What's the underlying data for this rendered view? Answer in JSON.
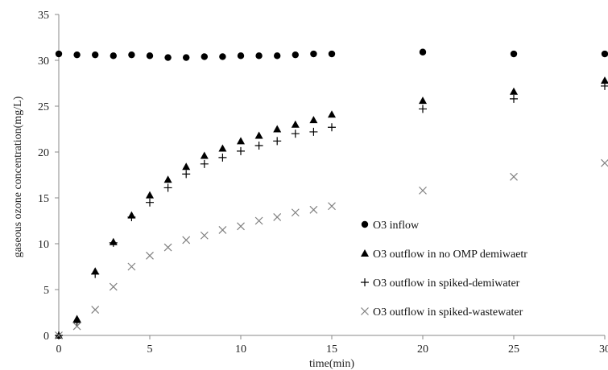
{
  "chart_data": {
    "type": "scatter",
    "title": "",
    "xlabel": "time(min)",
    "ylabel": "gaseous ozone concentration(mg/L)",
    "xlim": [
      0,
      30
    ],
    "ylim": [
      0,
      35
    ],
    "xticks": [
      0,
      5,
      10,
      15,
      20,
      25,
      30
    ],
    "yticks": [
      0,
      5,
      10,
      15,
      20,
      25,
      30,
      35
    ],
    "grid": false,
    "legend": "center-right",
    "series": [
      {
        "name": "O3 inflow",
        "marker": "circle",
        "color": "#000000",
        "x": [
          0,
          1,
          2,
          3,
          4,
          5,
          6,
          7,
          8,
          9,
          10,
          11,
          12,
          13,
          14,
          15,
          20,
          25,
          30
        ],
        "y": [
          30.7,
          30.6,
          30.6,
          30.5,
          30.6,
          30.5,
          30.3,
          30.3,
          30.4,
          30.4,
          30.5,
          30.5,
          30.5,
          30.6,
          30.7,
          30.7,
          30.9,
          30.7,
          30.7
        ]
      },
      {
        "name": "O3 outflow in no OMP demiwaetr",
        "marker": "triangle",
        "color": "#000000",
        "x": [
          0,
          1,
          2,
          3,
          4,
          5,
          6,
          7,
          8,
          9,
          10,
          11,
          12,
          13,
          14,
          15,
          20,
          25,
          30
        ],
        "y": [
          0,
          1.8,
          7.0,
          10.2,
          13.1,
          15.3,
          17.0,
          18.4,
          19.6,
          20.4,
          21.2,
          21.8,
          22.5,
          23.0,
          23.5,
          24.1,
          25.6,
          26.6,
          27.8
        ]
      },
      {
        "name": "O3 outflow in spiked-demiwater",
        "marker": "plus",
        "color": "#000000",
        "x": [
          0,
          1,
          2,
          3,
          4,
          5,
          6,
          7,
          8,
          9,
          10,
          11,
          12,
          13,
          14,
          15,
          20,
          25,
          30
        ],
        "y": [
          0,
          1.4,
          6.7,
          10.1,
          12.9,
          14.5,
          16.1,
          17.6,
          18.7,
          19.4,
          20.1,
          20.7,
          21.2,
          22.0,
          22.2,
          22.7,
          24.7,
          25.8,
          27.2
        ]
      },
      {
        "name": "O3 outflow in spiked-wastewater",
        "marker": "x",
        "color": "#808080",
        "x": [
          0,
          1,
          2,
          3,
          4,
          5,
          6,
          7,
          8,
          9,
          10,
          11,
          12,
          13,
          14,
          15,
          20,
          25,
          30
        ],
        "y": [
          0,
          1.0,
          2.8,
          5.3,
          7.5,
          8.7,
          9.6,
          10.4,
          10.9,
          11.5,
          11.9,
          12.5,
          12.9,
          13.4,
          13.7,
          14.1,
          15.8,
          17.3,
          18.8
        ]
      }
    ]
  }
}
